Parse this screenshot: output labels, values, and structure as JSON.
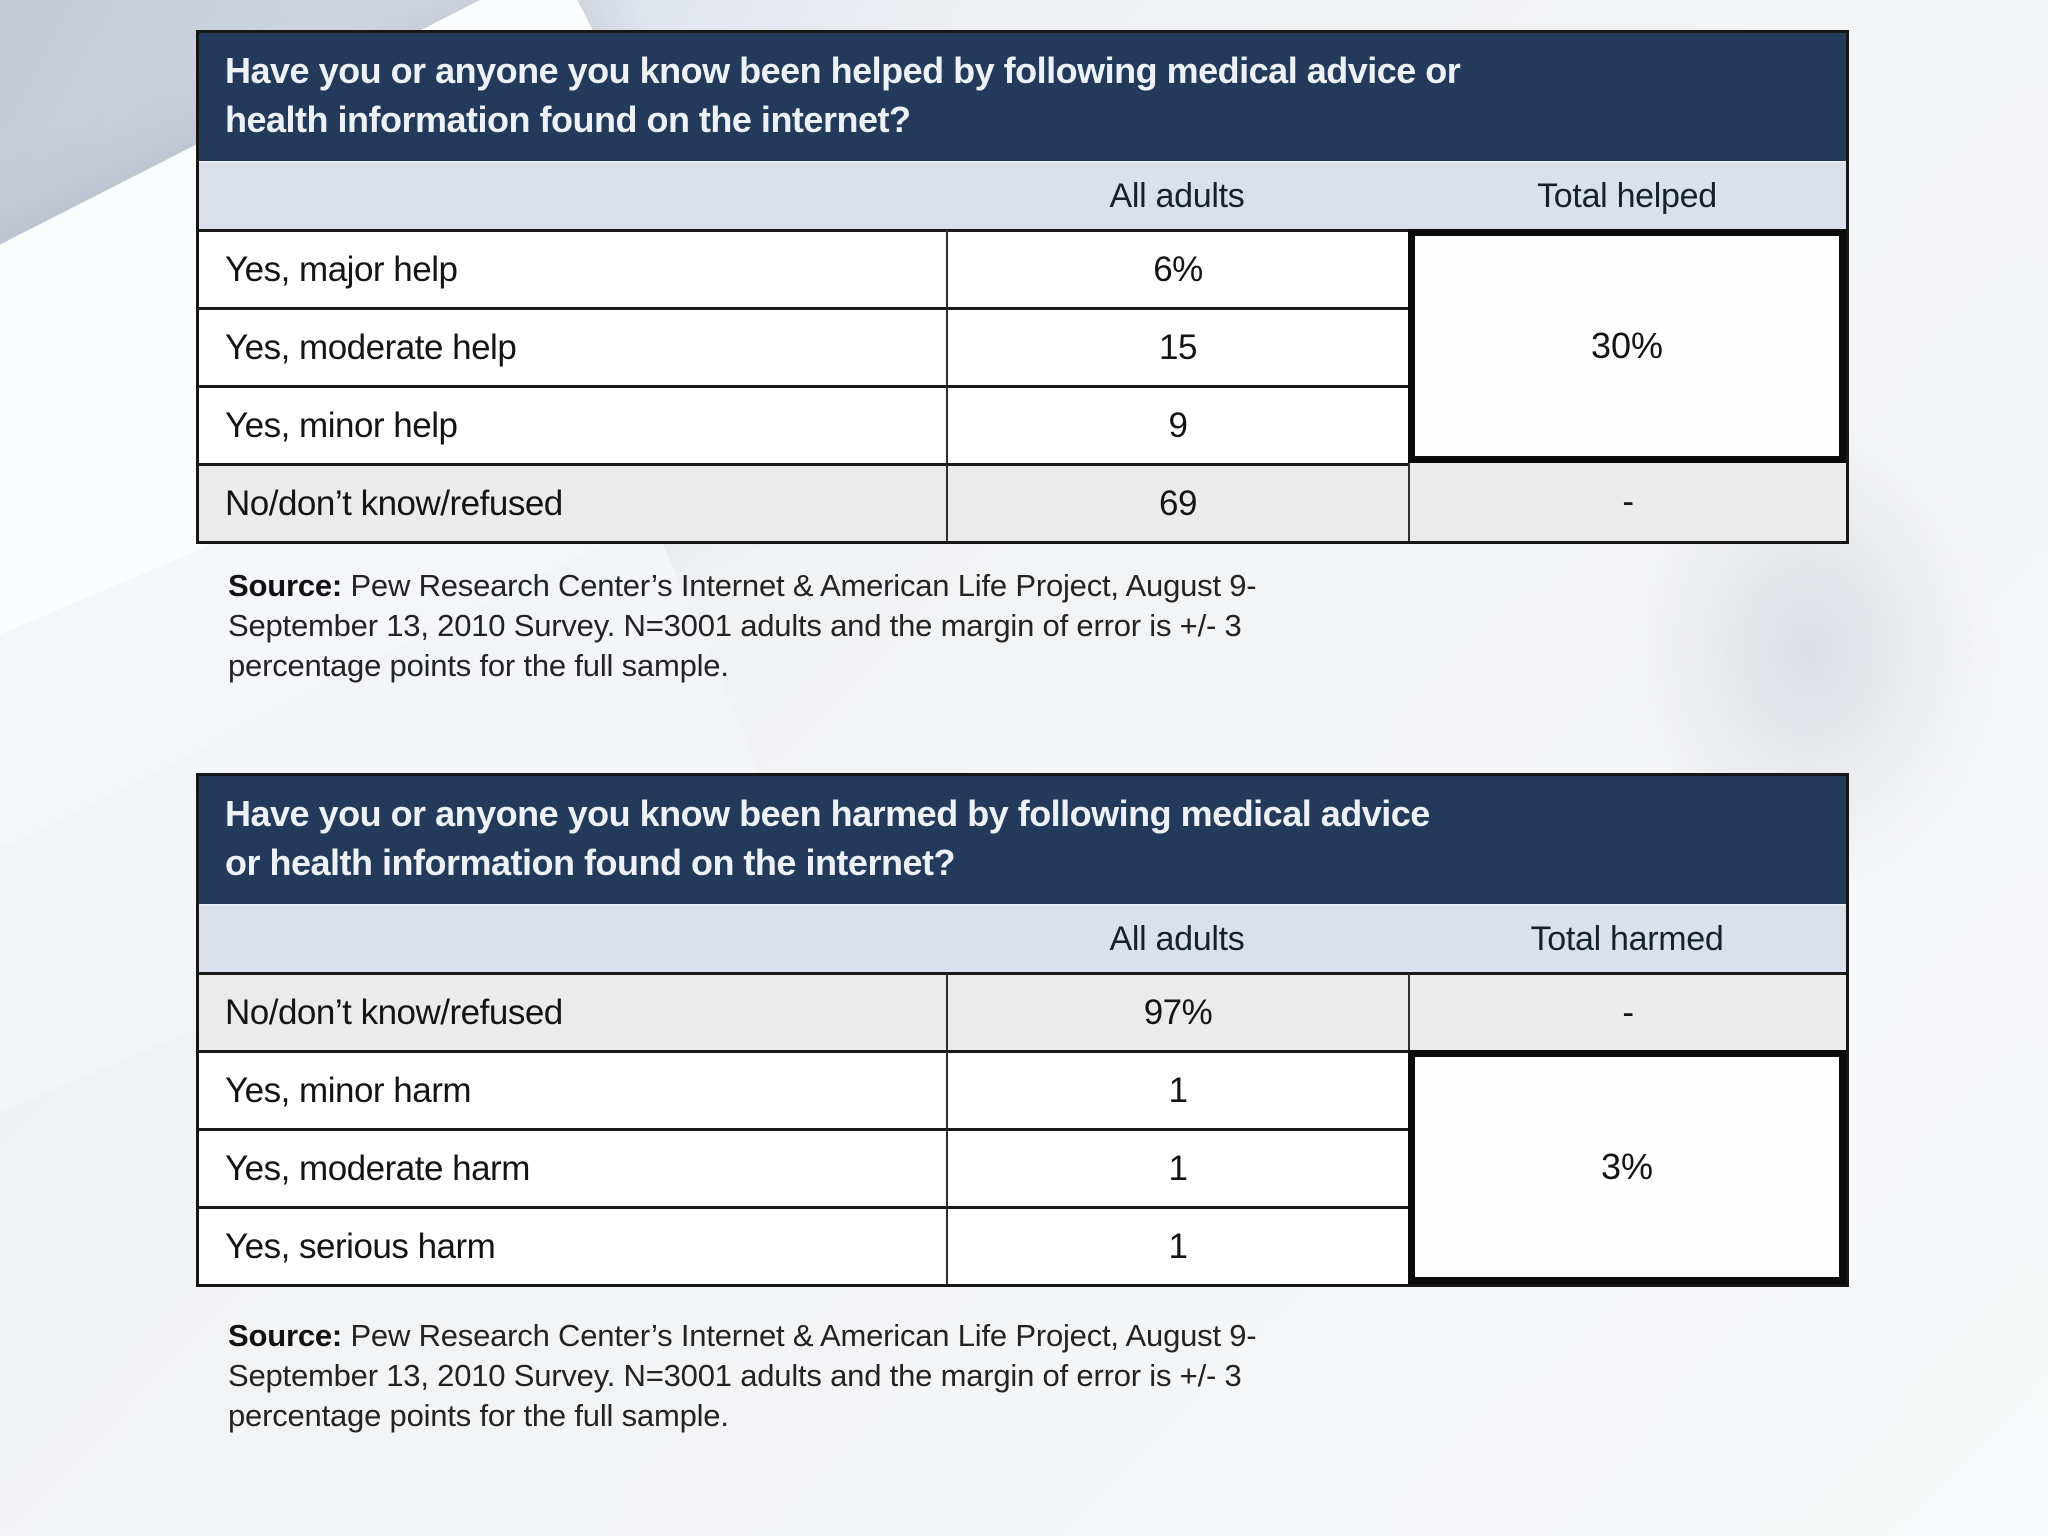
{
  "colors": {
    "header_bg": "#243a5a",
    "header_text": "#edf1f8",
    "column_header_bg": "#dbe1ec",
    "alt_row_bg": "#ebebeb",
    "border_dark": "#161616",
    "merged_border": "#0b0b0b"
  },
  "tables": [
    {
      "id": "helped",
      "title_lines": [
        "Have you or anyone you know been helped by following medical advice or",
        "health information found on the internet?"
      ],
      "col_headers": [
        "All adults",
        "Total helped"
      ],
      "rows": [
        {
          "label": "Yes, major help",
          "all_adults": "6%"
        },
        {
          "label": "Yes, moderate help",
          "all_adults": "15"
        },
        {
          "label": "Yes, minor help",
          "all_adults": "9"
        },
        {
          "label": "No/don’t know/refused",
          "all_adults": "69",
          "total": "-"
        }
      ],
      "merged_total": "30%",
      "source": {
        "label": "Source:",
        "lines": [
          "Pew Research Center’s Internet & American Life Project, August 9-",
          "September 13, 2010 Survey. N=3001 adults and the margin of error is +/- 3",
          "percentage points for the full sample."
        ]
      }
    },
    {
      "id": "harmed",
      "title_lines": [
        "Have you or anyone you know been harmed by following medical advice",
        "or health information found on the internet?"
      ],
      "col_headers": [
        "All adults",
        "Total harmed"
      ],
      "rows": [
        {
          "label": "No/don’t know/refused",
          "all_adults": "97%",
          "total": "-"
        },
        {
          "label": "Yes, minor harm",
          "all_adults": "1"
        },
        {
          "label": "Yes, moderate harm",
          "all_adults": "1"
        },
        {
          "label": "Yes, serious harm",
          "all_adults": "1"
        }
      ],
      "merged_total": "3%",
      "source": {
        "label": "Source:",
        "lines": [
          "Pew Research Center’s Internet & American Life Project, August 9-",
          "September 13, 2010 Survey. N=3001 adults and the margin of error is +/- 3",
          "percentage points for the full sample."
        ]
      }
    }
  ]
}
